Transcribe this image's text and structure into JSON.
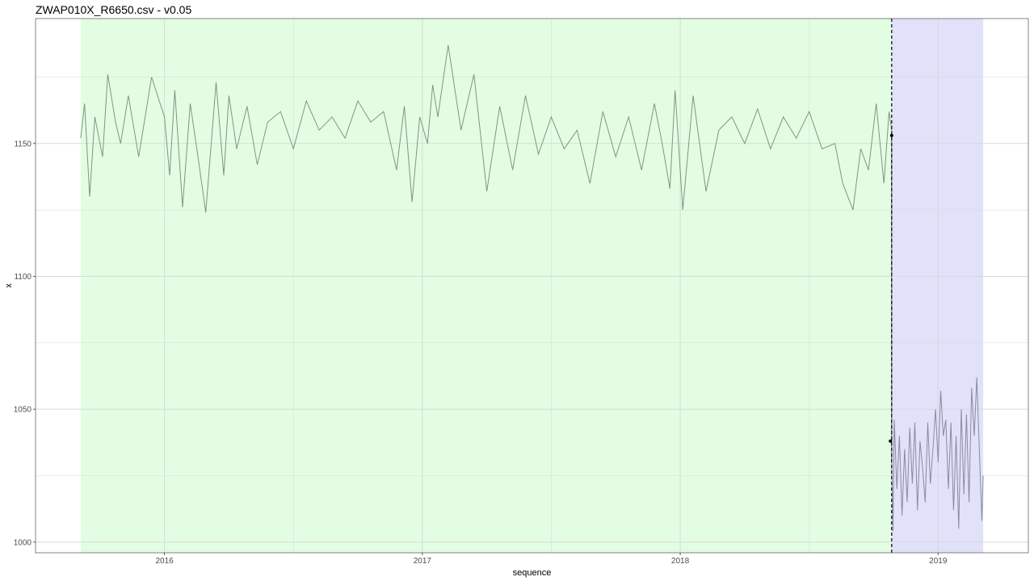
{
  "title": "ZWAP010X_R6650.csv - v0.05",
  "colors": {
    "train_region": "#e3fde3",
    "test_region": "#e1e1fa",
    "train_line": "#7f967f",
    "test_line": "#8a8aa3",
    "grid": "#d9d9d9",
    "changepoint": "#000000"
  },
  "chart_data": {
    "type": "line",
    "title": "ZWAP010X_R6650.csv - v0.05",
    "xlabel": "sequence",
    "ylabel": "x",
    "xlim": [
      2015.5,
      2019.35
    ],
    "ylim": [
      996,
      1197
    ],
    "x_ticks": [
      2016,
      2017,
      2018,
      2019
    ],
    "x_tick_labels": [
      "2016",
      "2017",
      "2018",
      "2019"
    ],
    "y_ticks": [
      1000,
      1050,
      1100,
      1150
    ],
    "y_tick_labels": [
      "1000",
      "1050",
      "1100",
      "1150"
    ],
    "grid": true,
    "regions": [
      {
        "label": "train",
        "x_start": 2015.675,
        "x_end": 2018.82,
        "color": "#e3fde3"
      },
      {
        "label": "test",
        "x_start": 2018.82,
        "x_end": 2019.175,
        "color": "#e1e1fa"
      }
    ],
    "changepoint_x": 2018.82,
    "changepoint_markers": [
      {
        "x": 2018.82,
        "y": 1153
      },
      {
        "x": 2018.815,
        "y": 1038
      }
    ],
    "series": [
      {
        "color": "#7f967f",
        "x": [
          2015.675,
          2015.69,
          2015.71,
          2015.73,
          2015.76,
          2015.78,
          2015.81,
          2015.83,
          2015.86,
          2015.9,
          2015.95,
          2016.0,
          2016.02,
          2016.04,
          2016.07,
          2016.1,
          2016.13,
          2016.16,
          2016.2,
          2016.23,
          2016.25,
          2016.28,
          2016.32,
          2016.36,
          2016.4,
          2016.45,
          2016.5,
          2016.55,
          2016.6,
          2016.65,
          2016.7,
          2016.75,
          2016.8,
          2016.85,
          2016.9,
          2016.93,
          2016.96,
          2016.99,
          2017.02,
          2017.04,
          2017.06,
          2017.1,
          2017.15,
          2017.2,
          2017.25,
          2017.3,
          2017.35,
          2017.4,
          2017.45,
          2017.5,
          2017.55,
          2017.6,
          2017.65,
          2017.7,
          2017.75,
          2017.8,
          2017.85,
          2017.9,
          2017.93,
          2017.96,
          2017.98,
          2018.01,
          2018.05,
          2018.1,
          2018.15,
          2018.2,
          2018.25,
          2018.3,
          2018.35,
          2018.4,
          2018.45,
          2018.5,
          2018.55,
          2018.6,
          2018.63,
          2018.67,
          2018.7,
          2018.73,
          2018.76,
          2018.79,
          2018.81,
          2018.82
        ],
        "y": [
          1152,
          1165,
          1130,
          1160,
          1145,
          1176,
          1158,
          1150,
          1168,
          1145,
          1175,
          1160,
          1138,
          1170,
          1126,
          1165,
          1145,
          1124,
          1173,
          1138,
          1168,
          1148,
          1164,
          1142,
          1158,
          1162,
          1148,
          1166,
          1155,
          1160,
          1152,
          1166,
          1158,
          1162,
          1140,
          1164,
          1128,
          1160,
          1150,
          1172,
          1160,
          1187,
          1155,
          1176,
          1132,
          1164,
          1140,
          1168,
          1146,
          1160,
          1148,
          1155,
          1135,
          1162,
          1145,
          1160,
          1140,
          1165,
          1150,
          1133,
          1170,
          1125,
          1168,
          1132,
          1155,
          1160,
          1150,
          1163,
          1148,
          1160,
          1152,
          1162,
          1148,
          1150,
          1135,
          1125,
          1148,
          1140,
          1165,
          1135,
          1162,
          1155
        ]
      },
      {
        "color": "#8a8aa3",
        "x": [
          2018.82,
          2018.825,
          2018.83,
          2018.84,
          2018.85,
          2018.86,
          2018.87,
          2018.88,
          2018.89,
          2018.9,
          2018.91,
          2018.92,
          2018.93,
          2018.94,
          2018.95,
          2018.96,
          2018.97,
          2018.98,
          2018.99,
          2019.0,
          2019.01,
          2019.02,
          2019.03,
          2019.04,
          2019.05,
          2019.06,
          2019.07,
          2019.08,
          2019.09,
          2019.1,
          2019.11,
          2019.12,
          2019.13,
          2019.14,
          2019.15,
          2019.16,
          2019.17,
          2019.175
        ],
        "y": [
          1030,
          1004,
          1046,
          1020,
          1040,
          1010,
          1035,
          1015,
          1043,
          1022,
          1045,
          1012,
          1038,
          1028,
          1015,
          1045,
          1022,
          1035,
          1050,
          1030,
          1057,
          1040,
          1046,
          1020,
          1045,
          1012,
          1040,
          1005,
          1050,
          1018,
          1048,
          1015,
          1058,
          1040,
          1062,
          1035,
          1008,
          1025
        ]
      }
    ]
  }
}
